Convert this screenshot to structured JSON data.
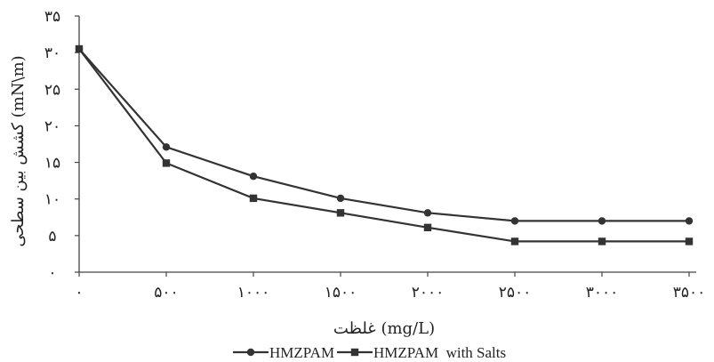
{
  "chart_data": {
    "type": "line",
    "xlabel": "غلظت (mg/L)",
    "ylabel": "کشش بین سطحی (mN\\m)",
    "x": [
      0,
      500,
      1000,
      1500,
      2000,
      2500,
      3000,
      3500
    ],
    "x_tick_labels": [
      "۰",
      "۵۰۰",
      "۱۰۰۰",
      "۱۵۰۰",
      "۲۰۰۰",
      "۲۵۰۰",
      "۳۰۰۰",
      "۳۵۰۰"
    ],
    "y_ticks": [
      0,
      5,
      10,
      15,
      20,
      25,
      30,
      35
    ],
    "y_tick_labels": [
      "۰",
      "۵",
      "۱۰",
      "۱۵",
      "۲۰",
      "۲۵",
      "۳۰",
      "۳۵"
    ],
    "xlim": [
      0,
      3500
    ],
    "ylim": [
      0,
      35
    ],
    "grid": false,
    "legend_position": "bottom",
    "series": [
      {
        "name": "HMZPAM",
        "marker": "circle",
        "color": "#333333",
        "values": [
          30.5,
          17.1,
          13.1,
          10.1,
          8.1,
          7.0,
          7.0,
          7.0
        ]
      },
      {
        "name": "HMZPAM  with Salts",
        "marker": "square",
        "color": "#333333",
        "values": [
          30.5,
          14.9,
          10.1,
          8.1,
          6.1,
          4.2,
          4.2,
          4.2
        ]
      }
    ]
  }
}
